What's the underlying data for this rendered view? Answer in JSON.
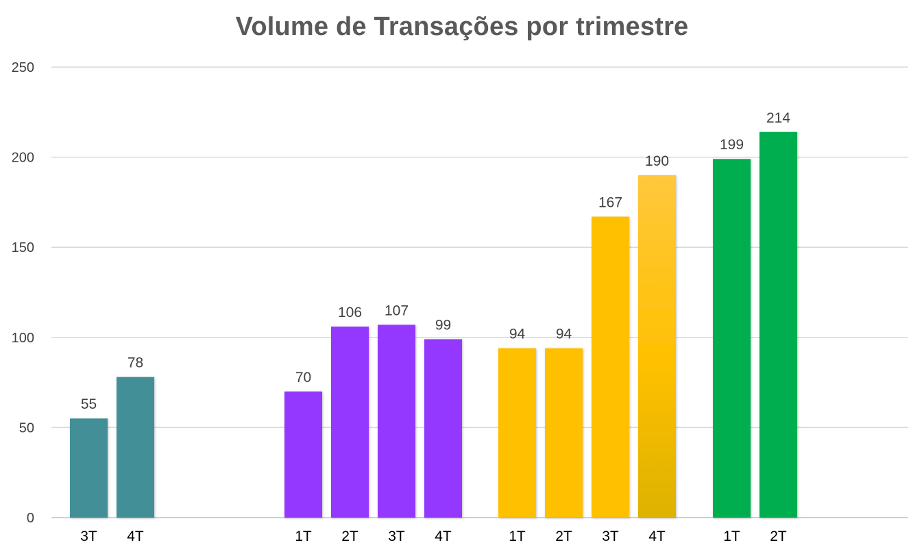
{
  "chart_data": {
    "type": "bar",
    "title": "Volume de Transações por trimestre",
    "xlabel": "",
    "ylabel": "",
    "ylim": [
      0,
      250
    ],
    "yticks": [
      0,
      50,
      100,
      150,
      200,
      250
    ],
    "grid": true,
    "legend": "none",
    "data_labels": true,
    "groups": [
      {
        "color": "#438F97",
        "bars": [
          {
            "category": "3T",
            "value": 55
          },
          {
            "category": "4T",
            "value": 78
          }
        ]
      },
      {
        "color": "#9437FF",
        "bars": [
          {
            "category": "1T",
            "value": 70
          },
          {
            "category": "2T",
            "value": 106
          },
          {
            "category": "3T",
            "value": 107
          },
          {
            "category": "4T",
            "value": 99
          }
        ]
      },
      {
        "color": "#FFC000",
        "highlight_color": "#E6B400",
        "bars": [
          {
            "category": "1T",
            "value": 94
          },
          {
            "category": "2T",
            "value": 94
          },
          {
            "category": "3T",
            "value": 167
          },
          {
            "category": "4T",
            "value": 190,
            "gradient": true
          }
        ]
      },
      {
        "color": "#00AD4F",
        "bars": [
          {
            "category": "1T",
            "value": 199
          },
          {
            "category": "2T",
            "value": 214
          }
        ]
      }
    ]
  }
}
